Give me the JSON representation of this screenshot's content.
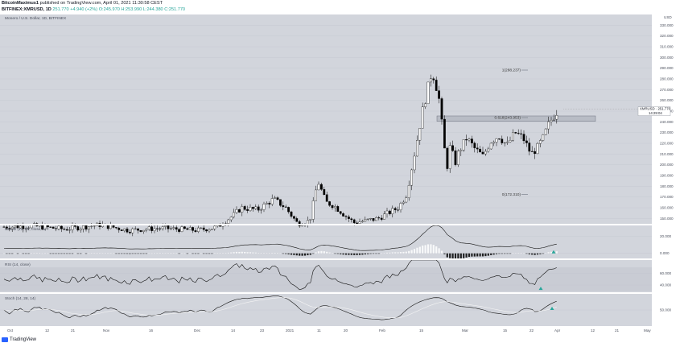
{
  "header": {
    "line1_user": "BitcoinMaximus1",
    "line1_rest": " published on TradingView.com, April 01, 2021 11:30:58 CEST",
    "symbol": "BITFINEX:XMRUSD, 1D",
    "price": "251.770",
    "change": "+4.940 (+2%)",
    "ohlc_o": "O:245.970",
    "ohlc_h": "H:253.990",
    "ohlc_l": "L:244.380",
    "ohlc_c": "C:251.770"
  },
  "main_label": "Monero / U.S. Dollar, 1D, BITFINEX",
  "price_tag": {
    "name": "XMRUSD",
    "value": "251.770",
    "timer": "14:29:04"
  },
  "currency": "USD",
  "footer": {
    "brand": "TradingView"
  },
  "colors": {
    "bg": "#d2d5dc",
    "bull": "#ffffff",
    "bear": "#000000",
    "grid": "#c4c7cf",
    "signal": "#26a69a",
    "fib": "#6f7480"
  },
  "chart_data": {
    "type": "candlestick",
    "price_axis": {
      "ylim": [
        145,
        340
      ],
      "ticks": [
        150,
        160,
        170,
        180,
        190,
        200,
        210,
        220,
        230,
        240,
        250,
        260,
        270,
        280,
        290,
        300,
        310,
        320,
        330
      ],
      "labels": [
        "150.000",
        "160.000",
        "170.000",
        "180.000",
        "190.000",
        "200.000",
        "210.000",
        "220.000",
        "230.000",
        "240.000",
        "250.000",
        "260.000",
        "270.000",
        "280.000",
        "290.000",
        "300.000",
        "310.000",
        "320.000",
        "330.000"
      ]
    },
    "time_axis": [
      "Oct",
      "12",
      "21",
      "Nov",
      "16",
      "Dec",
      "14",
      "23",
      "2021",
      "11",
      "20",
      "Feb",
      "15",
      "Mar",
      "15",
      "22",
      "Apr",
      "12",
      "21",
      "May"
    ],
    "fib_levels": [
      {
        "label": "1(288.237)",
        "value": 288.237
      },
      {
        "label": "0.618(243.953)",
        "value": 243.953
      },
      {
        "label": "0(172.310)",
        "value": 172.31
      }
    ],
    "resistance_zone": [
      240.5,
      245.5
    ],
    "last_price": 251.77,
    "indicators": [
      {
        "name": "MACD (12, 26, close, 9)",
        "ticks": [
          "20.000",
          "0.000"
        ],
        "tick_values": [
          20,
          0
        ],
        "ylim": [
          -6,
          33
        ]
      },
      {
        "name": "RSI (14, close)",
        "ticks": [
          "60.000",
          "40.000"
        ],
        "tick_values": [
          60,
          40
        ],
        "ylim": [
          28,
          82
        ]
      },
      {
        "name": "Stoch (14, 28, 14)",
        "ticks": [
          "50.000"
        ],
        "tick_values": [
          50
        ],
        "ylim": [
          0,
          100
        ]
      }
    ]
  }
}
